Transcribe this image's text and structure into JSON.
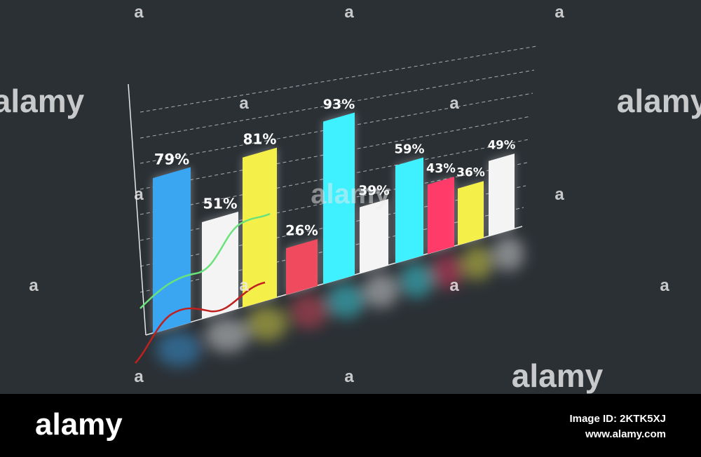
{
  "chart_data": {
    "type": "bar",
    "values": [
      79,
      51,
      81,
      26,
      93,
      39,
      59,
      43,
      36,
      49
    ],
    "value_labels": [
      "79%",
      "51%",
      "81%",
      "26%",
      "93%",
      "39%",
      "59%",
      "43%",
      "36%",
      "49%"
    ],
    "colors": [
      "#3aa6f2",
      "#f4f4f4",
      "#f5ef4a",
      "#f04a5e",
      "#3ff0ff",
      "#f4f4f4",
      "#3ff0ff",
      "#ff3b6a",
      "#f5ef4a",
      "#f4f4f4"
    ]
  },
  "watermark": {
    "word": "alamy",
    "letter": "a"
  },
  "footer": {
    "logo": "alamy",
    "image_id": "Image ID: 2KTK5XJ",
    "url": "www.alamy.com"
  }
}
